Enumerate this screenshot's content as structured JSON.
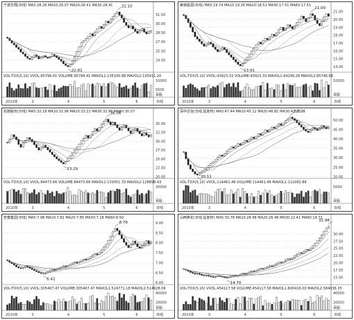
{
  "chart_data": [
    {
      "type": "candlestick",
      "header": "宁波华翔(日线) MA5:28.26 MA10:28.07 MA20:28.41 MA30:28.41",
      "vol_header": "VOL-TDX(5,10) VVOL:95799.41 VOLUME:95799.41 MAVOL1:135100.88 MAVOL2:135411.20",
      "yticks": [
        "31.50",
        "30.00",
        "28.50",
        "27.00",
        "25.50",
        "24.00"
      ],
      "vol_ticks": [
        "10000",
        "5000"
      ],
      "vol_unit": "百股",
      "xlabels": [
        "2010年",
        "3",
        "4",
        "5",
        "6",
        "日线"
      ],
      "ylim": [
        22.0,
        32.5
      ],
      "high_label": "32.10",
      "low_label": "22.81",
      "close": [
        27.6,
        27.2,
        26.8,
        26.5,
        26.1,
        25.8,
        25.3,
        25.0,
        24.6,
        24.3,
        24.1,
        24.5,
        24.8,
        24.6,
        24.2,
        24.4,
        24.7,
        24.5,
        24.3,
        24.6,
        24.9,
        24.7,
        24.4,
        24.1,
        23.8,
        23.4,
        23.1,
        22.9,
        23.3,
        23.9,
        24.6,
        25.4,
        26.2,
        26.9,
        27.2,
        27.5,
        27.9,
        28.3,
        28.0,
        28.6,
        29.1,
        29.5,
        29.2,
        29.8,
        30.4,
        30.1,
        30.7,
        31.2,
        31.6,
        31.9,
        31.4,
        30.9,
        30.2,
        29.7,
        29.3,
        29.6,
        29.1,
        28.7,
        28.4,
        28.8,
        29.1,
        28.6,
        28.3,
        28.5,
        28.8
      ]
    },
    {
      "type": "candlestick",
      "header": "美锦能源(日线) MA5:19.74 MA10:19.26 MA20:18.51 MA30:17.51 MA60:17.51",
      "vol_header": "VOL-TDX(5,10) VVOL:43923.33 VOLUME:43923.33 MAVOL1:64299.28 MAVOL2:85746.68",
      "yticks": [
        "21.00",
        "20.00",
        "19.00",
        "18.00",
        "17.00",
        "16.00",
        "15.00",
        "14.00"
      ],
      "vol_ticks": [
        "10000"
      ],
      "vol_unit": "百股",
      "xlabels": [
        "2010年",
        "3",
        "4",
        "5",
        "6",
        "日线"
      ],
      "ylim": [
        13.3,
        21.4
      ],
      "high_label": "21.00",
      "low_label": "13.91",
      "close": [
        20.5,
        20.1,
        19.6,
        19.0,
        18.4,
        17.8,
        17.5,
        17.2,
        16.9,
        16.6,
        16.8,
        17.1,
        16.9,
        16.5,
        16.2,
        15.9,
        16.1,
        16.4,
        16.2,
        15.8,
        15.5,
        15.2,
        14.9,
        14.6,
        14.3,
        14.1,
        14.4,
        14.8,
        15.2,
        15.6,
        16.0,
        16.4,
        16.8,
        17.1,
        16.9,
        17.3,
        17.6,
        17.4,
        17.8,
        18.1,
        17.9,
        18.3,
        18.7,
        19.0,
        18.6,
        18.9,
        19.3,
        19.1,
        18.8,
        19.2,
        19.6,
        20.0,
        20.4,
        20.1,
        19.7,
        20.2,
        20.7,
        20.5,
        19.9,
        19.5,
        19.2,
        19.8,
        20.3,
        20.7,
        20.4
      ]
    },
    {
      "type": "candlestick",
      "header": "兆驰股份(日线) MA5:32.18 MA10:31.96 MA20:33.22 MA30:32.90 MA60:30.07",
      "vol_header": "VOL-TDX(5,10) VVOL:84473.66 VOLUME:84473.66 MAVOL1:133051.33 MAVOL2:128898.43",
      "yticks": [
        "35.00",
        "32.50",
        "30.00",
        "27.50",
        "25.00",
        "22.50",
        "20.00"
      ],
      "vol_ticks": [
        "20000"
      ],
      "vol_unit": "百股",
      "xlabels": [
        "2010年",
        "3",
        "4",
        "5",
        "6",
        "日线"
      ],
      "ylim": [
        19.5,
        37.5
      ],
      "high_label": "36.56",
      "low_label": "23.29",
      "close": [
        29.5,
        30.6,
        31.8,
        31.2,
        30.4,
        29.1,
        28.3,
        29.5,
        30.2,
        31.0,
        30.5,
        29.8,
        29.0,
        28.2,
        27.5,
        28.1,
        28.8,
        28.3,
        27.6,
        26.9,
        26.2,
        25.6,
        25.0,
        24.5,
        24.0,
        23.6,
        24.3,
        25.2,
        25.9,
        26.7,
        27.5,
        28.3,
        29.2,
        30.1,
        30.8,
        31.6,
        30.9,
        31.8,
        32.7,
        33.5,
        32.8,
        33.9,
        34.8,
        35.6,
        36.2,
        35.4,
        34.6,
        35.3,
        34.5,
        33.8,
        33.1,
        33.9,
        34.5,
        33.7,
        32.9,
        32.2,
        33.0,
        33.6,
        32.8,
        32.1,
        31.5,
        32.3,
        31.7,
        31.2,
        31.8
      ]
    },
    {
      "type": "candlestick",
      "header": "深中达信(日线,后复权) MA5:47.44 MA10:45.12 MA20:46.81 MA30:42.25",
      "vol_header": "VOL-TDX(5,10) VVOL:114461.48 VOLUME:114461.48 MAVOL1:111082.88",
      "yticks": [
        "50.00",
        "45.00",
        "40.00",
        "35.00",
        "30.00",
        "25.00",
        "20.00"
      ],
      "vol_ticks": [
        "5000"
      ],
      "vol_unit": "百股",
      "xlabels": [
        "2010年",
        "3",
        "4",
        "5",
        "6",
        "日线"
      ],
      "ylim": [
        19.0,
        53.0
      ],
      "high_label": "53.38",
      "low_label": "20.11",
      "close": [
        33.0,
        29.5,
        26.2,
        24.0,
        22.6,
        21.4,
        20.8,
        21.9,
        22.8,
        23.5,
        24.6,
        25.8,
        26.9,
        27.8,
        29.0,
        30.2,
        31.5,
        30.8,
        32.1,
        33.4,
        34.6,
        35.8,
        35.1,
        36.3,
        37.5,
        36.8,
        38.0,
        39.2,
        38.5,
        39.8,
        41.0,
        40.2,
        41.5,
        42.8,
        42.1,
        43.4,
        44.6,
        43.8,
        45.1,
        46.3,
        45.6,
        46.9,
        48.1,
        47.3,
        48.6,
        49.8,
        50.7,
        51.6,
        50.8,
        49.9,
        48.7,
        47.5,
        46.3,
        45.1,
        44.2,
        43.5,
        44.8,
        46.1,
        45.3,
        44.6,
        45.9,
        47.0,
        46.2,
        45.5,
        46.4
      ]
    },
    {
      "type": "candlestick",
      "header": "安泰集团(日线) MA5:7.98 MA10:7.82 MA20:7.85 MA30:7.18 MA60:6.50",
      "vol_header": "VOL-TDX(5,10) VVOL:305407.47 VOLUME:305407.47 MAVOL1:524771.18 MAVOL2:514928.06",
      "yticks": [
        "9.00",
        "8.50",
        "8.00",
        "7.50",
        "7.00",
        "6.50",
        "6.00"
      ],
      "vol_ticks": [
        "40000",
        "20000"
      ],
      "vol_unit": "百股",
      "xlabels": [
        "2010年",
        "3",
        "4",
        "5",
        "6",
        "日线"
      ],
      "ylim": [
        5.9,
        9.1
      ],
      "high_label": "8.78",
      "low_label": "6.42",
      "close": [
        7.1,
        7.02,
        6.95,
        6.88,
        6.8,
        6.74,
        6.7,
        6.76,
        6.82,
        6.78,
        6.72,
        6.66,
        6.6,
        6.55,
        6.5,
        6.46,
        6.44,
        6.49,
        6.55,
        6.61,
        6.66,
        6.62,
        6.68,
        6.74,
        6.79,
        6.84,
        6.8,
        6.86,
        6.92,
        6.98,
        7.03,
        6.98,
        7.05,
        7.12,
        7.18,
        7.14,
        7.22,
        7.3,
        7.38,
        7.45,
        7.4,
        7.52,
        7.64,
        7.78,
        7.92,
        8.1,
        8.32,
        8.55,
        8.72,
        8.6,
        8.4,
        8.2,
        8.02,
        7.88,
        7.75,
        7.9,
        8.08,
        7.95,
        7.8,
        7.72,
        7.85,
        7.98,
        8.1,
        7.96,
        8.04
      ]
    },
    {
      "type": "candlestick",
      "header": "山西焦化(日线,后复权) MA5:30.78 MA10:28.98 MA20:26.48 MA30:22.41 MA60:19.72",
      "vol_header": "VOL-TDX(5,10) VVOL:454117.58 VOLUME:454117.58 MAVOL1:600416.00 MAVOL2:584036.35",
      "yticks": [
        "30.00",
        "27.50",
        "25.00",
        "22.50",
        "20.00",
        "17.50",
        "15.00"
      ],
      "vol_ticks": [
        "40000",
        "20000"
      ],
      "vol_unit": "百股",
      "xlabels": [
        "2010年",
        "3",
        "4",
        "5",
        "6",
        "日线"
      ],
      "ylim": [
        12.5,
        34.5
      ],
      "high_label": "32.98",
      "low_label": "14.70",
      "close": [
        17.8,
        17.5,
        17.1,
        16.7,
        16.4,
        16.1,
        16.3,
        16.0,
        15.7,
        15.5,
        15.7,
        15.4,
        15.2,
        15.0,
        15.3,
        15.6,
        15.4,
        15.1,
        14.9,
        14.8,
        15.1,
        15.4,
        15.7,
        15.5,
        15.8,
        16.1,
        16.4,
        16.2,
        16.5,
        16.9,
        17.2,
        17.0,
        17.4,
        17.8,
        18.1,
        17.9,
        18.3,
        18.7,
        19.0,
        18.8,
        19.3,
        19.8,
        20.2,
        20.0,
        20.5,
        21.0,
        21.4,
        21.2,
        21.8,
        22.4,
        22.9,
        23.5,
        23.2,
        23.9,
        24.6,
        24.3,
        25.1,
        25.9,
        26.7,
        27.6,
        28.5,
        29.6,
        30.8,
        31.9,
        32.6
      ]
    }
  ]
}
